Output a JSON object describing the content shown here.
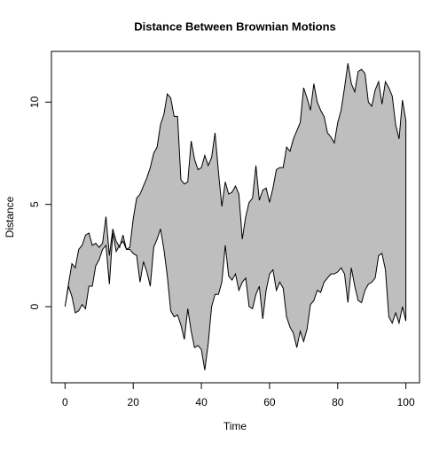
{
  "chart_data": {
    "type": "area",
    "title": "Distance Between Brownian Motions",
    "x_label": "Time",
    "y_label": "Distance",
    "x": [
      0,
      1,
      2,
      3,
      4,
      5,
      6,
      7,
      8,
      9,
      10,
      11,
      12,
      13,
      14,
      15,
      16,
      17,
      18,
      19,
      20,
      21,
      22,
      23,
      24,
      25,
      26,
      27,
      28,
      29,
      30,
      31,
      32,
      33,
      34,
      35,
      36,
      37,
      38,
      39,
      40,
      41,
      42,
      43,
      44,
      45,
      46,
      47,
      48,
      49,
      50,
      51,
      52,
      53,
      54,
      55,
      56,
      57,
      58,
      59,
      60,
      61,
      62,
      63,
      64,
      65,
      66,
      67,
      68,
      69,
      70,
      71,
      72,
      73,
      74,
      75,
      76,
      77,
      78,
      79,
      80,
      81,
      82,
      83,
      84,
      85,
      86,
      87,
      88,
      89,
      90,
      91,
      92,
      93,
      94,
      95,
      96,
      97,
      98,
      99,
      100
    ],
    "series": [
      {
        "color": "#000000",
        "values": [
          0,
          1.1,
          2.1,
          1.9,
          2.8,
          3.0,
          3.5,
          3.6,
          3.0,
          3.1,
          2.9,
          3.1,
          4.4,
          2.5,
          3.8,
          3.2,
          2.9,
          3.5,
          2.8,
          2.9,
          4.3,
          5.3,
          5.5,
          5.9,
          6.3,
          6.8,
          7.5,
          7.8,
          8.9,
          9.4,
          10.4,
          10.2,
          9.3,
          9.3,
          6.2,
          6.0,
          6.1,
          8.1,
          7.2,
          6.7,
          6.8,
          7.4,
          6.9,
          7.3,
          8.5,
          6.6,
          4.9,
          6.1,
          5.5,
          5.6,
          5.9,
          5.5,
          3.3,
          4.4,
          5.1,
          5.3,
          6.9,
          5.2,
          5.7,
          5.8,
          5.1,
          5.8,
          6.7,
          6.8,
          6.8,
          7.8,
          7.6,
          8.2,
          8.6,
          9.0,
          10.7,
          10.2,
          9.6,
          10.9,
          10.0,
          9.6,
          9.3,
          8.5,
          8.3,
          8.0,
          9.0,
          9.6,
          10.7,
          11.9,
          10.9,
          10.5,
          11.5,
          11.6,
          11.4,
          10.0,
          9.8,
          10.6,
          11.0,
          9.9,
          11.0,
          10.7,
          10.3,
          8.9,
          8.2,
          10.1,
          9.1
        ]
      },
      {
        "color": "#000000",
        "values": [
          0,
          1.0,
          0.5,
          -0.3,
          -0.2,
          0.1,
          -0.1,
          1.0,
          1.0,
          2.0,
          2.3,
          2.8,
          3.0,
          1.1,
          3.6,
          2.7,
          3.0,
          3.2,
          2.8,
          2.8,
          2.6,
          2.5,
          1.2,
          2.2,
          1.7,
          1.0,
          2.9,
          3.3,
          3.8,
          2.8,
          1.5,
          -0.2,
          -0.5,
          -0.4,
          -0.9,
          -1.6,
          -0.1,
          -1.2,
          -2.0,
          -1.9,
          -2.1,
          -3.1,
          -1.8,
          0.0,
          0.6,
          0.6,
          1.2,
          3.0,
          1.5,
          1.3,
          1.6,
          0.8,
          1.2,
          1.4,
          0.0,
          -0.1,
          0.6,
          1.0,
          -0.6,
          0.8,
          1.6,
          1.8,
          0.8,
          1.2,
          0.9,
          -0.5,
          -1.0,
          -1.3,
          -2.0,
          -1.2,
          -1.7,
          -1.1,
          0.1,
          0.3,
          0.8,
          0.7,
          1.2,
          1.4,
          1.6,
          1.6,
          1.7,
          1.9,
          1.6,
          0.2,
          1.9,
          1.0,
          0.3,
          0.2,
          0.8,
          1.1,
          1.2,
          1.4,
          2.5,
          2.6,
          1.8,
          -0.5,
          -0.8,
          -0.3,
          -0.8,
          0.0,
          -0.7
        ]
      }
    ],
    "fill": "#bebebe",
    "xlim": [
      -4,
      104
    ],
    "xticks": [
      0,
      20,
      40,
      60,
      80,
      100
    ],
    "ylim": [
      -3.72,
      12.48
    ],
    "yticks": [
      0,
      5,
      10
    ]
  }
}
